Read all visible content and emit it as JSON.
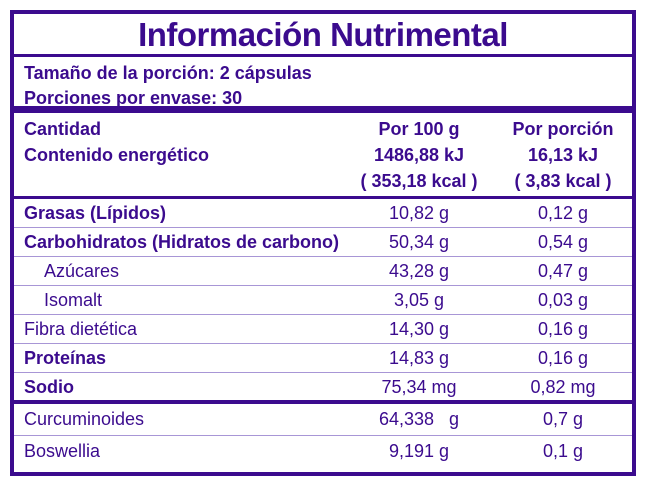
{
  "title": "Información Nutrimental",
  "serving": {
    "size": "Tamaño de la porción:  2 cápsulas",
    "per_container": "Porciones por envase:  30"
  },
  "header": {
    "col1": [
      "Cantidad",
      "Contenido energético"
    ],
    "col2": [
      "Por 100 g",
      "1486,88 kJ",
      "( 353,18 kcal )"
    ],
    "col3": [
      "Por porción",
      "16,13 kJ",
      "( 3,83 kcal )"
    ]
  },
  "rows": [
    {
      "label": "Grasas (Lípidos)",
      "per100": "10,82 g",
      "perServing": "0,12 g"
    },
    {
      "label": "Carbohidratos (Hidratos de carbono)",
      "per100": "50,34 g",
      "perServing": "0,54 g"
    },
    {
      "label": "Azúcares",
      "per100": "43,28 g",
      "perServing": "0,47 g"
    },
    {
      "label": "Isomalt",
      "per100": "3,05 g",
      "perServing": "0,03 g"
    },
    {
      "label": "Fibra dietética",
      "per100": "14,30 g",
      "perServing": "0,16 g"
    },
    {
      "label": "Proteínas",
      "per100": "14,83 g",
      "perServing": "0,16 g"
    },
    {
      "label": "Sodio",
      "per100": "75,34 mg",
      "perServing": "0,82 mg"
    },
    {
      "label": "Curcuminoides",
      "per100": "64,338   g",
      "perServing": "0,7 g"
    },
    {
      "label": "Boswellia",
      "per100": "9,191 g",
      "perServing": "0,1 g"
    }
  ],
  "colors": {
    "primary": "#3b0b8e",
    "divider": "#a896d6"
  }
}
